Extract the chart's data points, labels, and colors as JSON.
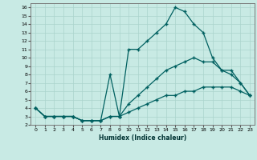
{
  "xlabel": "Humidex (Indice chaleur)",
  "bg_color": "#c8eae4",
  "line_color": "#006060",
  "grid_color": "#aad4cc",
  "xlim": [
    -0.5,
    23.5
  ],
  "ylim": [
    2,
    16.5
  ],
  "xticks": [
    0,
    1,
    2,
    3,
    4,
    5,
    6,
    7,
    8,
    9,
    10,
    11,
    12,
    13,
    14,
    15,
    16,
    17,
    18,
    19,
    20,
    21,
    22,
    23
  ],
  "yticks": [
    2,
    3,
    4,
    5,
    6,
    7,
    8,
    9,
    10,
    11,
    12,
    13,
    14,
    15,
    16
  ],
  "line1_x": [
    0,
    1,
    2,
    3,
    4,
    5,
    6,
    7,
    8,
    9,
    10,
    11,
    12,
    13,
    14,
    15,
    16,
    17,
    18,
    19,
    20,
    21,
    22,
    23
  ],
  "line1_y": [
    4,
    3,
    3,
    3,
    3,
    2.5,
    2.5,
    2.5,
    8.0,
    3.0,
    11.0,
    11.0,
    12.0,
    13.0,
    14.0,
    16.0,
    15.5,
    14.0,
    13.0,
    10.0,
    8.5,
    8.5,
    7.0,
    5.5
  ],
  "line2_x": [
    0,
    1,
    2,
    3,
    4,
    5,
    6,
    7,
    8,
    9,
    10,
    11,
    12,
    13,
    14,
    15,
    16,
    17,
    18,
    19,
    20,
    21,
    22,
    23
  ],
  "line2_y": [
    4,
    3,
    3,
    3,
    3,
    2.5,
    2.5,
    2.5,
    3.0,
    3.0,
    4.5,
    5.5,
    6.5,
    7.5,
    8.5,
    9.0,
    9.5,
    10.0,
    9.5,
    9.5,
    8.5,
    8.0,
    7.0,
    5.5
  ],
  "line3_x": [
    0,
    1,
    2,
    3,
    4,
    5,
    6,
    7,
    8,
    9,
    10,
    11,
    12,
    13,
    14,
    15,
    16,
    17,
    18,
    19,
    20,
    21,
    22,
    23
  ],
  "line3_y": [
    4,
    3,
    3,
    3,
    3,
    2.5,
    2.5,
    2.5,
    3.0,
    3.0,
    3.5,
    4.0,
    4.5,
    5.0,
    5.5,
    5.5,
    6.0,
    6.0,
    6.5,
    6.5,
    6.5,
    6.5,
    6.0,
    5.5
  ]
}
